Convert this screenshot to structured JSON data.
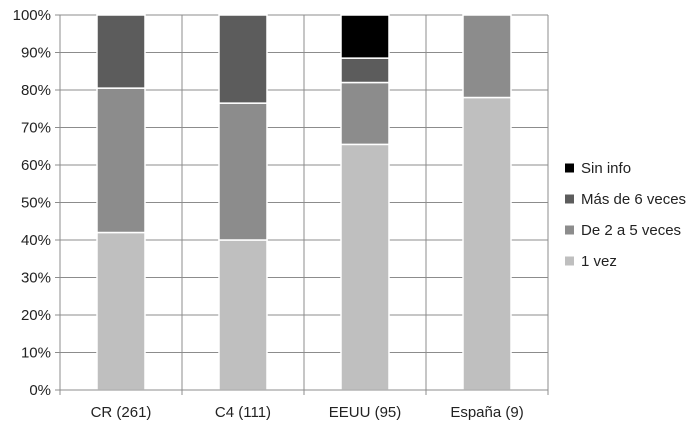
{
  "chart_data": {
    "type": "bar",
    "stacked": true,
    "normalized_percent": true,
    "categories": [
      "CR (261)",
      "C4 (111)",
      "EEUU (95)",
      "España (9)"
    ],
    "series": [
      {
        "name": "1 vez",
        "color": "#bfbfbf",
        "values": [
          42,
          40,
          65.5,
          78
        ]
      },
      {
        "name": "De 2 a 5 veces",
        "color": "#8c8c8c",
        "values": [
          38.5,
          36.5,
          16.5,
          22
        ]
      },
      {
        "name": "Más de 6 veces",
        "color": "#5c5c5c",
        "values": [
          19.5,
          23.5,
          6.5,
          0
        ]
      },
      {
        "name": "Sin info",
        "color": "#000000",
        "values": [
          0,
          0,
          11.5,
          0
        ]
      }
    ],
    "y_ticks": [
      "0%",
      "10%",
      "20%",
      "30%",
      "40%",
      "50%",
      "60%",
      "70%",
      "80%",
      "90%",
      "100%"
    ],
    "ylim": [
      0,
      100
    ],
    "grid": true,
    "legend_position": "right",
    "legend_order": [
      "Sin info",
      "Más de 6 veces",
      "De 2 a 5 veces",
      "1 vez"
    ],
    "title": "",
    "xlabel": "",
    "ylabel": ""
  }
}
